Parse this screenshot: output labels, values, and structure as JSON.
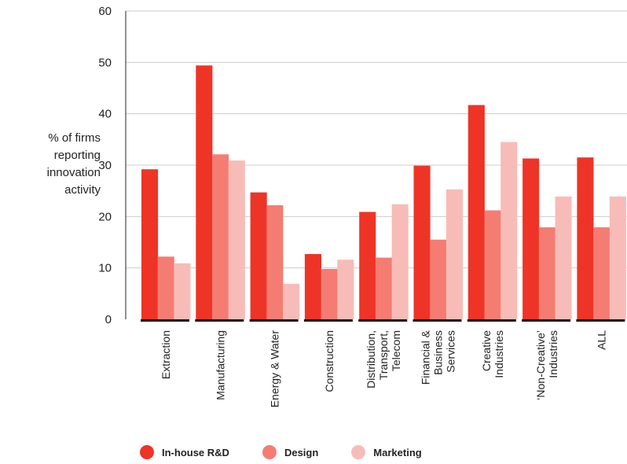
{
  "chart_data": {
    "type": "bar",
    "title": "",
    "ylabel_lines": [
      "% of firms",
      "reporting",
      "innovation",
      "activity"
    ],
    "ylim": [
      0,
      60
    ],
    "yticks": [
      0,
      10,
      20,
      30,
      40,
      50,
      60
    ],
    "grid": true,
    "legend_position": "bottom",
    "categories": [
      [
        "Extraction"
      ],
      [
        "Manufacturing"
      ],
      [
        "Energy & Water"
      ],
      [
        "Construction"
      ],
      [
        "Distribution,",
        "Transport,",
        "Telecom"
      ],
      [
        "Financial &",
        "Business",
        "Services"
      ],
      [
        "Creative",
        "Industries"
      ],
      [
        "‘Non-Creative’",
        "Industries"
      ],
      [
        "ALL"
      ]
    ],
    "series": [
      {
        "name": "In-house R&D",
        "color": "#ee3427",
        "values": [
          29.2,
          49.4,
          24.7,
          12.7,
          20.9,
          29.9,
          41.7,
          31.3,
          31.5
        ]
      },
      {
        "name": "Design",
        "color": "#f47c73",
        "values": [
          12.2,
          32.1,
          22.2,
          9.8,
          12.0,
          15.5,
          21.2,
          17.9,
          17.9
        ]
      },
      {
        "name": "Marketing",
        "color": "#f8bcb8",
        "values": [
          10.9,
          30.9,
          6.9,
          11.6,
          22.4,
          25.3,
          34.5,
          23.9,
          23.9
        ]
      }
    ]
  }
}
